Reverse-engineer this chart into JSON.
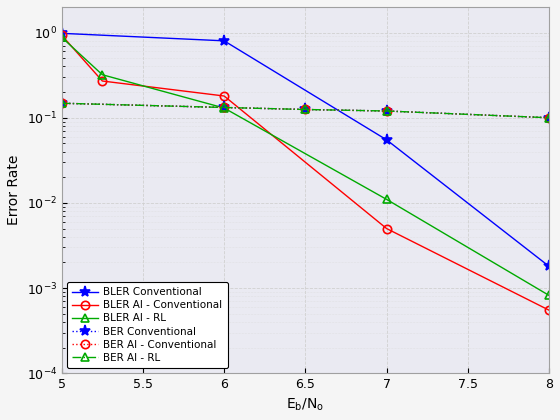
{
  "xlabel": "E_b/N_o",
  "ylabel": "Error Rate",
  "xlim": [
    5,
    8
  ],
  "ylim": [
    0.0001,
    2
  ],
  "xticks": [
    5,
    5.5,
    6,
    6.5,
    7,
    7.5,
    8
  ],
  "BLER_Conventional": {
    "x": [
      5,
      6,
      7,
      8
    ],
    "y": [
      0.98,
      0.8,
      0.055,
      0.0018
    ],
    "color": "#0000ff",
    "linestyle": "-",
    "marker": "*",
    "markersize": 8,
    "label": "BLER Conventional"
  },
  "BLER_AI_Conventional": {
    "x": [
      5,
      5.25,
      6,
      7,
      8
    ],
    "y": [
      0.93,
      0.27,
      0.18,
      0.005,
      0.00055
    ],
    "color": "#ff0000",
    "linestyle": "-",
    "marker": "o",
    "markersize": 6,
    "label": "BLER AI - Conventional"
  },
  "BLER_AI_RL": {
    "x": [
      5,
      5.25,
      6,
      7,
      8
    ],
    "y": [
      0.88,
      0.32,
      0.13,
      0.011,
      0.00082
    ],
    "color": "#00aa00",
    "linestyle": "-",
    "marker": "^",
    "markersize": 6,
    "label": "BLER AI - RL"
  },
  "BER_Conventional": {
    "x": [
      5,
      6,
      6.5,
      7,
      8
    ],
    "y": [
      0.148,
      0.132,
      0.125,
      0.12,
      0.1
    ],
    "color": "#0000ff",
    "linestyle": ":",
    "marker": "*",
    "markersize": 8,
    "label": "BER Conventional"
  },
  "BER_AI_Conventional": {
    "x": [
      5,
      6,
      6.5,
      7,
      8
    ],
    "y": [
      0.148,
      0.132,
      0.125,
      0.12,
      0.1
    ],
    "color": "#ff0000",
    "linestyle": ":",
    "marker": "o",
    "markersize": 6,
    "label": "BER AI - Conventional"
  },
  "BER_AI_RL": {
    "x": [
      5,
      6,
      6.5,
      7,
      8
    ],
    "y": [
      0.148,
      0.132,
      0.125,
      0.12,
      0.1
    ],
    "color": "#00aa00",
    "linestyle": "-.",
    "marker": "^",
    "markersize": 6,
    "label": "BER AI - RL"
  },
  "bg_color": "#eaeaf2",
  "face_color": "#f5f5f5",
  "grid_major_color": "#ffffff",
  "grid_minor_color": "#e8e8e8",
  "figsize": [
    5.6,
    4.2
  ],
  "dpi": 100
}
